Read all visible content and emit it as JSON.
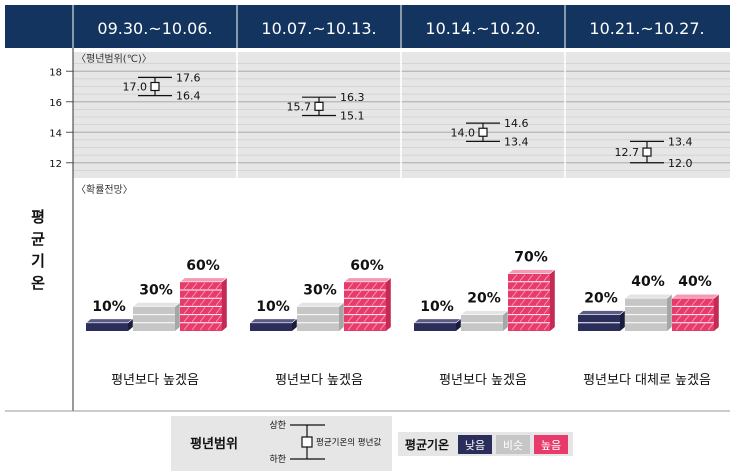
{
  "side_label": [
    "평",
    "균",
    "기",
    "온"
  ],
  "headers": [
    "09.30.~10.06.",
    "10.07.~10.13.",
    "10.14.~10.20.",
    "10.21.~10.27."
  ],
  "range_section": {
    "title": "〈평년범위(℃)〉",
    "yticks": [
      18,
      16,
      14,
      12
    ],
    "ylim": [
      11,
      19
    ]
  },
  "prob_section": {
    "title": "〈확률전망〉",
    "level_labels": [
      "10%",
      "20%",
      "30%",
      "40%",
      "60%",
      "70%"
    ]
  },
  "chart_data": [
    {
      "type": "error-bar",
      "title": "〈평년범위(℃)〉",
      "categories": [
        "09.30.~10.06.",
        "10.07.~10.13.",
        "10.14.~10.20.",
        "10.21.~10.27."
      ],
      "mean": [
        17.0,
        15.7,
        14.0,
        12.7
      ],
      "upper": [
        17.6,
        16.3,
        14.6,
        13.4
      ],
      "lower": [
        16.4,
        15.1,
        13.4,
        12.0
      ],
      "mean_labels": [
        "17.0",
        "15.7",
        "14.0",
        "12.7"
      ],
      "upper_labels": [
        "17.6",
        "16.3",
        "14.6",
        "13.4"
      ],
      "lower_labels": [
        "16.4",
        "15.1",
        "13.4",
        "12.0"
      ],
      "yticks": [
        12,
        14,
        16,
        18
      ],
      "ylim": [
        11,
        19
      ],
      "grid": true
    },
    {
      "type": "bar",
      "title": "〈확률전망〉",
      "categories": [
        "09.30.~10.06.",
        "10.07.~10.13.",
        "10.14.~10.20.",
        "10.21.~10.27."
      ],
      "series": [
        {
          "name": "낮음",
          "values": [
            10,
            10,
            10,
            20
          ],
          "labels": [
            "10%",
            "10%",
            "10%",
            "20%"
          ]
        },
        {
          "name": "비슷",
          "values": [
            30,
            30,
            20,
            40
          ],
          "labels": [
            "30%",
            "30%",
            "20%",
            "40%"
          ]
        },
        {
          "name": "높음",
          "values": [
            60,
            60,
            70,
            40
          ],
          "labels": [
            "60%",
            "60%",
            "70%",
            "40%"
          ]
        }
      ],
      "summary": [
        "평년보다 높겠음",
        "평년보다 높겠음",
        "평년보다 높겠음",
        "평년보다 대체로 높겠음"
      ]
    }
  ],
  "legend": {
    "range_title": "평년범위",
    "upper": "상한",
    "lower": "하한",
    "mean": "평균기온의 평년값",
    "temp_title": "평균기온",
    "low": "낮음",
    "similar": "비슷",
    "high": "높음"
  },
  "colors": {
    "header_bg": "#13345e",
    "low": "#2b2d5a",
    "similar": "#c6c6c6",
    "high": "#e93b6b",
    "panel_bg": "#e6e6e6"
  }
}
